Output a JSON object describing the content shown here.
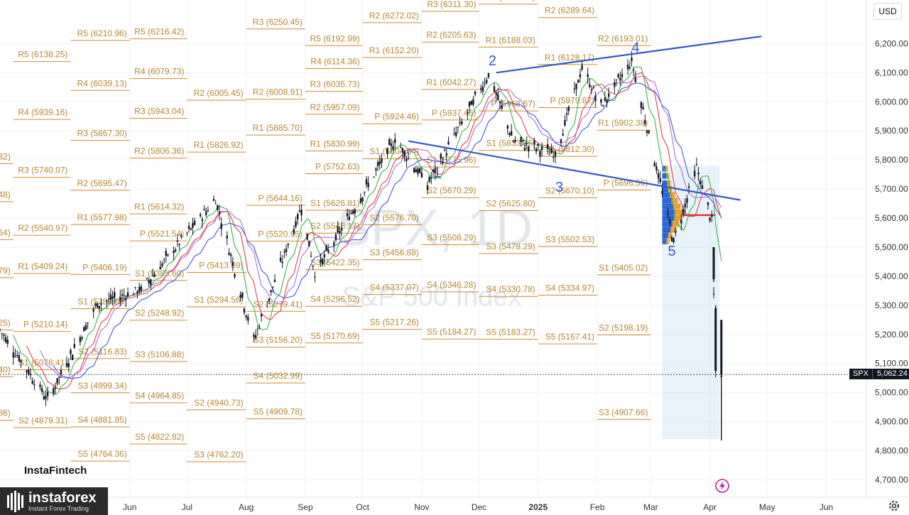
{
  "chart_data": {
    "type": "candlestick",
    "symbol": "SPX",
    "interval": "1D",
    "instrument_name": "S&P 500 Index",
    "currency": "USD",
    "last_price": "5,062.24",
    "last_value": 5062.24,
    "ylim": [
      4640,
      6350
    ],
    "y_ticks": [
      "6,200.00",
      "6,100.00",
      "6,000.00",
      "5,900.00",
      "5,800.00",
      "5,700.00",
      "5,600.00",
      "5,500.00",
      "5,400.00",
      "5,300.00",
      "5,200.00",
      "5,100.00",
      "5,000.00",
      "4,900.00",
      "4,800.00",
      "4,700.00"
    ],
    "y_tick_values": [
      6200,
      6100,
      6000,
      5900,
      5800,
      5700,
      5600,
      5500,
      5400,
      5300,
      5200,
      5100,
      5000,
      4900,
      4800,
      4700
    ],
    "x_ticks": [
      "Jun",
      "Jul",
      "Aug",
      "Sep",
      "Oct",
      "Nov",
      "Dec",
      "2025",
      "Feb",
      "Mar",
      "Apr",
      "May",
      "Jun"
    ],
    "x_tick_bold": [
      false,
      false,
      false,
      false,
      false,
      false,
      false,
      true,
      false,
      false,
      false,
      false,
      false
    ],
    "x_tick_dates": [
      "2024-06-01",
      "2024-07-01",
      "2024-08-01",
      "2024-09-01",
      "2024-10-01",
      "2024-11-01",
      "2024-12-01",
      "2025-01-01",
      "2025-02-01",
      "2025-03-01",
      "2025-04-01",
      "2025-05-01",
      "2025-06-01"
    ],
    "x_range": [
      "2024-03-25",
      "2025-06-22"
    ],
    "wave_labels": [
      "1",
      "2",
      "3",
      "4",
      "5"
    ],
    "wave_points": [
      {
        "label": "1",
        "date": "2024-11-07",
        "value": 5740
      },
      {
        "label": "2",
        "date": "2024-12-06",
        "value": 6125
      },
      {
        "label": "3",
        "date": "2025-01-10",
        "value": 5690
      },
      {
        "label": "4",
        "date": "2025-02-19",
        "value": 6170
      },
      {
        "label": "5",
        "date": "2025-03-10",
        "value": 5470
      }
    ],
    "trendlines": [
      {
        "name": "upper",
        "start": {
          "date": "2024-12-10",
          "value": 6100
        },
        "end": {
          "date": "2025-04-28",
          "value": 6225
        }
      },
      {
        "name": "lower",
        "start": {
          "date": "2024-10-25",
          "value": 5865
        },
        "end": {
          "date": "2025-04-17",
          "value": 5662
        }
      }
    ],
    "watermark": [
      "SPX, 1D",
      "S&P 500 Index"
    ],
    "pivot_levels": [
      {
        "label": "R5 (6210.96)",
        "value": 6210.96,
        "from": "2024-05-01",
        "to": "2024-06-01"
      },
      {
        "label": "R5 (6138.25)",
        "value": 6138.25,
        "from": "2024-04-01",
        "to": "2024-05-01"
      },
      {
        "label": "R4 (6039.13)",
        "value": 6039.13,
        "from": "2024-05-01",
        "to": "2024-06-01"
      },
      {
        "label": "R4 (5939.16)",
        "value": 5939.16,
        "from": "2024-04-01",
        "to": "2024-05-01"
      },
      {
        "label": "R3 (5867.30)",
        "value": 5867.3,
        "from": "2024-05-01",
        "to": "2024-06-01"
      },
      {
        "label": "R5 (5787.32)",
        "value": 5787.32,
        "from": "2024-03-01",
        "to": "2024-04-01"
      },
      {
        "label": "R3 (5740.07)",
        "value": 5740.07,
        "from": "2024-04-01",
        "to": "2024-05-01"
      },
      {
        "label": "R2 (5695.47)",
        "value": 5695.47,
        "from": "2024-05-01",
        "to": "2024-06-01"
      },
      {
        "label": "R4 (5656.48)",
        "value": 5656.48,
        "from": "2024-03-01",
        "to": "2024-04-01"
      },
      {
        "label": "R1 (5577.98)",
        "value": 5577.98,
        "from": "2024-05-01",
        "to": "2024-06-01"
      },
      {
        "label": "R2 (5540.97)",
        "value": 5540.97,
        "from": "2024-04-01",
        "to": "2024-05-01"
      },
      {
        "label": "R3 (5525.64)",
        "value": 5525.64,
        "from": "2024-03-01",
        "to": "2024-04-01"
      },
      {
        "label": "R1 (5409.24)",
        "value": 5409.24,
        "from": "2024-04-01",
        "to": "2024-05-01"
      },
      {
        "label": "P (5406.19)",
        "value": 5406.19,
        "from": "2024-05-01",
        "to": "2024-06-01"
      },
      {
        "label": "R2 (5394.79)",
        "value": 5394.79,
        "from": "2024-03-01",
        "to": "2024-04-01"
      },
      {
        "label": "S1 (5288.66)",
        "value": 5288.66,
        "from": "2024-05-01",
        "to": "2024-06-01"
      },
      {
        "label": "R1 (5215.25)",
        "value": 5215.25,
        "from": "2024-03-01",
        "to": "2024-04-01"
      },
      {
        "label": "P (5210.14)",
        "value": 5210.14,
        "from": "2024-04-01",
        "to": "2024-05-01"
      },
      {
        "label": "S2 (5116.83)",
        "value": 5116.83,
        "from": "2024-05-01",
        "to": "2024-06-01"
      },
      {
        "label": "S1 (5078.41)",
        "value": 5078.41,
        "from": "2024-04-01",
        "to": "2024-05-01"
      },
      {
        "label": "P (5054.40)",
        "value": 5054.4,
        "from": "2024-03-01",
        "to": "2024-04-01"
      },
      {
        "label": "S3 (4999.34)",
        "value": 4999.34,
        "from": "2024-05-01",
        "to": "2024-06-01"
      },
      {
        "label": "S1 (4904.86)",
        "value": 4904.86,
        "from": "2024-03-01",
        "to": "2024-04-01"
      },
      {
        "label": "S2 (4879.31)",
        "value": 4879.31,
        "from": "2024-04-01",
        "to": "2024-05-01"
      },
      {
        "label": "S4 (4881.85)",
        "value": 4881.85,
        "from": "2024-05-01",
        "to": "2024-06-01"
      },
      {
        "label": "S5 (4764.36)",
        "value": 4764.36,
        "from": "2024-05-01",
        "to": "2024-06-01"
      },
      {
        "label": "R5 (6216.42)",
        "value": 6216.42,
        "from": "2024-06-01",
        "to": "2024-07-01"
      },
      {
        "label": "R4 (6079.73)",
        "value": 6079.73,
        "from": "2024-06-01",
        "to": "2024-07-01"
      },
      {
        "label": "R3 (5943.04)",
        "value": 5943.04,
        "from": "2024-06-01",
        "to": "2024-07-01"
      },
      {
        "label": "R2 (5806.36)",
        "value": 5806.36,
        "from": "2024-06-01",
        "to": "2024-07-01"
      },
      {
        "label": "R1 (5614.32)",
        "value": 5614.32,
        "from": "2024-06-01",
        "to": "2024-07-01"
      },
      {
        "label": "P (5521.54)",
        "value": 5521.54,
        "from": "2024-06-01",
        "to": "2024-07-01"
      },
      {
        "label": "S1 (5385.60)",
        "value": 5385.6,
        "from": "2024-06-01",
        "to": "2024-07-01"
      },
      {
        "label": "S2 (5248.92)",
        "value": 5248.92,
        "from": "2024-06-01",
        "to": "2024-07-01"
      },
      {
        "label": "S3 (5106.88)",
        "value": 5106.88,
        "from": "2024-06-01",
        "to": "2024-07-01"
      },
      {
        "label": "S4 (4964.85)",
        "value": 4964.85,
        "from": "2024-06-01",
        "to": "2024-07-01"
      },
      {
        "label": "S5 (4822.82)",
        "value": 4822.82,
        "from": "2024-06-01",
        "to": "2024-07-01"
      },
      {
        "label": "R2 (6005.45)",
        "value": 6005.45,
        "from": "2024-07-01",
        "to": "2024-08-01"
      },
      {
        "label": "R1 (5826.92)",
        "value": 5826.92,
        "from": "2024-07-01",
        "to": "2024-08-01"
      },
      {
        "label": "P (5413.09)",
        "value": 5413.09,
        "from": "2024-07-01",
        "to": "2024-08-01"
      },
      {
        "label": "S1 (5294.56)",
        "value": 5294.56,
        "from": "2024-07-01",
        "to": "2024-08-01"
      },
      {
        "label": "S2 (4940.73)",
        "value": 4940.73,
        "from": "2024-07-01",
        "to": "2024-08-01"
      },
      {
        "label": "S3 (4762.20)",
        "value": 4762.2,
        "from": "2024-07-01",
        "to": "2024-08-01"
      },
      {
        "label": "R3 (6250.45)",
        "value": 6250.45,
        "from": "2024-08-01",
        "to": "2024-09-01"
      },
      {
        "label": "R2 (6008.91)",
        "value": 6008.91,
        "from": "2024-08-01",
        "to": "2024-09-01"
      },
      {
        "label": "R1 (5885.70)",
        "value": 5885.7,
        "from": "2024-08-01",
        "to": "2024-09-01"
      },
      {
        "label": "P (5644.16)",
        "value": 5644.16,
        "from": "2024-08-01",
        "to": "2024-09-01"
      },
      {
        "label": "P (5520.95)",
        "value": 5520.95,
        "from": "2024-08-01",
        "to": "2024-09-01"
      },
      {
        "label": "S2 (5279.41)",
        "value": 5279.41,
        "from": "2024-08-01",
        "to": "2024-09-01"
      },
      {
        "label": "S3 (5156.20)",
        "value": 5156.2,
        "from": "2024-08-01",
        "to": "2024-09-01"
      },
      {
        "label": "S4 (5032.99)",
        "value": 5032.99,
        "from": "2024-08-01",
        "to": "2024-09-01"
      },
      {
        "label": "S5 (4909.78)",
        "value": 4909.78,
        "from": "2024-08-01",
        "to": "2024-09-01"
      },
      {
        "label": "R5 (6192.99)",
        "value": 6192.99,
        "from": "2024-09-01",
        "to": "2024-10-01"
      },
      {
        "label": "R4 (6114.36)",
        "value": 6114.36,
        "from": "2024-09-01",
        "to": "2024-10-01"
      },
      {
        "label": "R3 (6035.73)",
        "value": 6035.73,
        "from": "2024-09-01",
        "to": "2024-10-01"
      },
      {
        "label": "R2 (5957.09)",
        "value": 5957.09,
        "from": "2024-09-01",
        "to": "2024-10-01"
      },
      {
        "label": "R1 (5830.99)",
        "value": 5830.99,
        "from": "2024-09-01",
        "to": "2024-10-01"
      },
      {
        "label": "P (5752.63)",
        "value": 5752.63,
        "from": "2024-09-01",
        "to": "2024-10-01"
      },
      {
        "label": "S1 (5626.81)",
        "value": 5626.81,
        "from": "2024-09-01",
        "to": "2024-10-01"
      },
      {
        "label": "S2 (5548.17)",
        "value": 5548.17,
        "from": "2024-09-01",
        "to": "2024-10-01"
      },
      {
        "label": "S3 (5422.35)",
        "value": 5422.35,
        "from": "2024-09-01",
        "to": "2024-10-01"
      },
      {
        "label": "S4 (5296.52)",
        "value": 5296.52,
        "from": "2024-09-01",
        "to": "2024-10-01"
      },
      {
        "label": "S5 (5170.69)",
        "value": 5170.69,
        "from": "2024-09-01",
        "to": "2024-10-01"
      },
      {
        "label": "R2 (6272.02)",
        "value": 6272.02,
        "from": "2024-10-01",
        "to": "2024-11-01"
      },
      {
        "label": "R1 (6152.20)",
        "value": 6152.2,
        "from": "2024-10-01",
        "to": "2024-11-01"
      },
      {
        "label": "P (5924.46)",
        "value": 5924.46,
        "from": "2024-10-01",
        "to": "2024-11-01"
      },
      {
        "label": "S1 (5804.64)",
        "value": 5804.64,
        "from": "2024-10-01",
        "to": "2024-11-01"
      },
      {
        "label": "S2 (5576.70)",
        "value": 5576.7,
        "from": "2024-10-01",
        "to": "2024-11-01"
      },
      {
        "label": "S3 (5456.88)",
        "value": 5456.88,
        "from": "2024-10-01",
        "to": "2024-11-01"
      },
      {
        "label": "S4 (5337.07)",
        "value": 5337.07,
        "from": "2024-10-01",
        "to": "2024-11-01"
      },
      {
        "label": "S5 (5217.26)",
        "value": 5217.26,
        "from": "2024-10-01",
        "to": "2024-11-01"
      },
      {
        "label": "R3 (6311.30)",
        "value": 6311.3,
        "from": "2024-11-01",
        "to": "2024-12-01"
      },
      {
        "label": "R2 (6205.63)",
        "value": 6205.63,
        "from": "2024-11-01",
        "to": "2024-12-01"
      },
      {
        "label": "R1 (6042.27)",
        "value": 6042.27,
        "from": "2024-11-01",
        "to": "2024-12-01"
      },
      {
        "label": "P (5937.46)",
        "value": 5937.46,
        "from": "2024-11-01",
        "to": "2024-12-01"
      },
      {
        "label": "S1 (5775.96)",
        "value": 5775.96,
        "from": "2024-11-01",
        "to": "2024-12-01"
      },
      {
        "label": "S2 (5670.29)",
        "value": 5670.29,
        "from": "2024-11-01",
        "to": "2024-12-01"
      },
      {
        "label": "S3 (5508.29)",
        "value": 5508.29,
        "from": "2024-11-01",
        "to": "2024-12-01"
      },
      {
        "label": "S4 (5346.28)",
        "value": 5346.28,
        "from": "2024-11-01",
        "to": "2024-12-01"
      },
      {
        "label": "S5 (5184.27)",
        "value": 5184.27,
        "from": "2024-11-01",
        "to": "2024-12-01"
      },
      {
        "label": "R2 (6335.54)",
        "value": 6335.54,
        "from": "2024-12-01",
        "to": "2025-01-01"
      },
      {
        "label": "R1 (6188.03)",
        "value": 6188.03,
        "from": "2024-12-01",
        "to": "2025-01-01"
      },
      {
        "label": "P (5968.67)",
        "value": 5968.67,
        "from": "2024-12-01",
        "to": "2025-01-01"
      },
      {
        "label": "S1 (5833.16)",
        "value": 5833.16,
        "from": "2024-12-01",
        "to": "2025-01-01"
      },
      {
        "label": "S2 (5625.80)",
        "value": 5625.8,
        "from": "2024-12-01",
        "to": "2025-01-01"
      },
      {
        "label": "S3 (5478.29)",
        "value": 5478.29,
        "from": "2024-12-01",
        "to": "2025-01-01"
      },
      {
        "label": "S4 (5330.78)",
        "value": 5330.78,
        "from": "2024-12-01",
        "to": "2025-01-01"
      },
      {
        "label": "S5 (5183.27)",
        "value": 5183.27,
        "from": "2024-12-01",
        "to": "2025-01-01"
      },
      {
        "label": "R2 (6289.64)",
        "value": 6289.64,
        "from": "2025-01-01",
        "to": "2025-02-01"
      },
      {
        "label": "R1 (6128.17)",
        "value": 6128.17,
        "from": "2025-01-01",
        "to": "2025-02-01"
      },
      {
        "label": "P (5979.87)",
        "value": 5979.87,
        "from": "2025-01-01",
        "to": "2025-02-01"
      },
      {
        "label": "S1 (5812.30)",
        "value": 5812.3,
        "from": "2025-01-01",
        "to": "2025-02-01"
      },
      {
        "label": "S2 (5670.10)",
        "value": 5670.1,
        "from": "2025-01-01",
        "to": "2025-02-01"
      },
      {
        "label": "S3 (5502.53)",
        "value": 5502.53,
        "from": "2025-01-01",
        "to": "2025-02-01"
      },
      {
        "label": "S4 (5334.97)",
        "value": 5334.97,
        "from": "2025-01-01",
        "to": "2025-02-01"
      },
      {
        "label": "S5 (5167.41)",
        "value": 5167.41,
        "from": "2025-01-01",
        "to": "2025-02-01"
      },
      {
        "label": "R2 (6193.01)",
        "value": 6193.01,
        "from": "2025-02-01",
        "to": "2025-03-01"
      },
      {
        "label": "R1 (5902.38)",
        "value": 5902.38,
        "from": "2025-02-01",
        "to": "2025-03-01"
      },
      {
        "label": "P (5696.56)",
        "value": 5696.56,
        "from": "2025-02-01",
        "to": "2025-03-01"
      },
      {
        "label": "S1 (5405.02)",
        "value": 5405.02,
        "from": "2025-02-01",
        "to": "2025-03-01"
      },
      {
        "label": "S2 (5198.19)",
        "value": 5198.19,
        "from": "2025-02-01",
        "to": "2025-03-01"
      },
      {
        "label": "S3 (4907.66)",
        "value": 4907.66,
        "from": "2025-02-01",
        "to": "2025-03-01"
      }
    ],
    "colors": {
      "pivot": "#d08a2a",
      "pivot_text": "#b8862e",
      "trendline": "#3558c8",
      "wave": "#3558c8",
      "up": "#131722",
      "volume_profile_up": "#2a66d6",
      "volume_profile_down": "#f0a032",
      "poc": "#e53030",
      "ma_fast": "#3bb54a",
      "ma_mid": "#e04343",
      "ma_slow": "#4a55d8",
      "ma_extra": "#b46ad6"
    }
  },
  "brand": {
    "instafintech": "InstaFintech",
    "instaforex": "instaforex",
    "instaforex_sub": "Instant Forex Trading"
  },
  "icons": {
    "settings": "gear-icon",
    "tradingview": "lightning-icon"
  }
}
